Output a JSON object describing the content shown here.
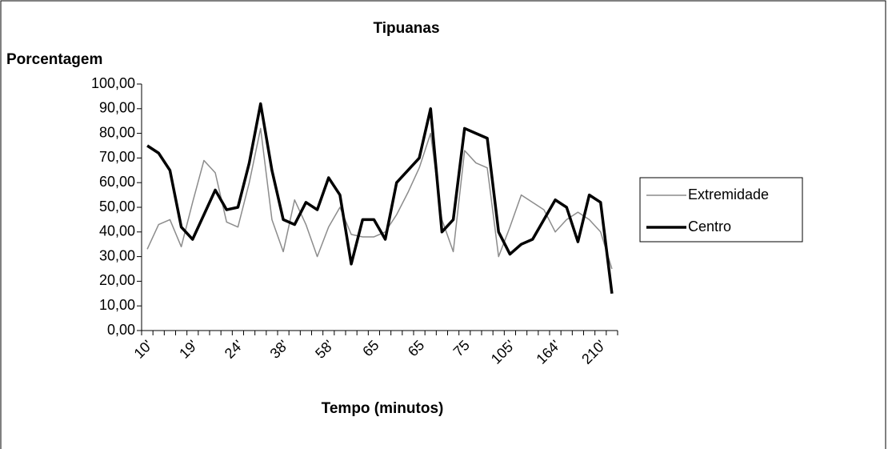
{
  "chart_data": {
    "type": "line",
    "title": "Tipuanas",
    "y_label": "Porcentagem",
    "x_label": "Tempo (minutos)",
    "categories": [
      "10'",
      null,
      null,
      null,
      "19'",
      null,
      null,
      null,
      "24'",
      null,
      null,
      null,
      "38'",
      null,
      null,
      null,
      "58'",
      null,
      null,
      null,
      "65",
      null,
      null,
      null,
      "65",
      null,
      null,
      null,
      "75",
      null,
      null,
      null,
      "105'",
      null,
      null,
      null,
      "164'",
      null,
      null,
      null,
      "210'",
      null
    ],
    "series": [
      {
        "name": "Extremidade",
        "color": "#8c8c8c",
        "width": 1.5,
        "values": [
          33,
          43,
          45,
          34,
          52,
          69,
          64,
          44,
          42,
          60,
          82,
          45,
          32,
          53,
          43,
          30,
          42,
          50,
          39,
          38,
          38,
          40,
          47,
          56,
          66,
          80,
          45,
          32,
          73,
          68,
          66,
          30,
          42,
          55,
          52,
          49,
          40,
          45,
          48,
          45,
          40,
          25
        ]
      },
      {
        "name": "Centro",
        "color": "#000000",
        "width": 3.5,
        "values": [
          75,
          72,
          65,
          42,
          37,
          47,
          57,
          49,
          50,
          68,
          92,
          65,
          45,
          43,
          52,
          49,
          62,
          55,
          27,
          45,
          45,
          37,
          60,
          65,
          70,
          90,
          40,
          45,
          82,
          80,
          78,
          40,
          31,
          35,
          37,
          45,
          53,
          50,
          36,
          55,
          52,
          15
        ]
      }
    ],
    "ylim": [
      0,
      100
    ],
    "yticks": [
      {
        "value": 0,
        "label": "0,00"
      },
      {
        "value": 10,
        "label": "10,00"
      },
      {
        "value": 20,
        "label": "20,00"
      },
      {
        "value": 30,
        "label": "30,00"
      },
      {
        "value": 40,
        "label": "40,00"
      },
      {
        "value": 50,
        "label": "50,00"
      },
      {
        "value": 60,
        "label": "60,00"
      },
      {
        "value": 70,
        "label": "70,00"
      },
      {
        "value": 80,
        "label": "80,00"
      },
      {
        "value": 90,
        "label": "90,00"
      },
      {
        "value": 100,
        "label": "100,00"
      }
    ],
    "legend": "right"
  }
}
